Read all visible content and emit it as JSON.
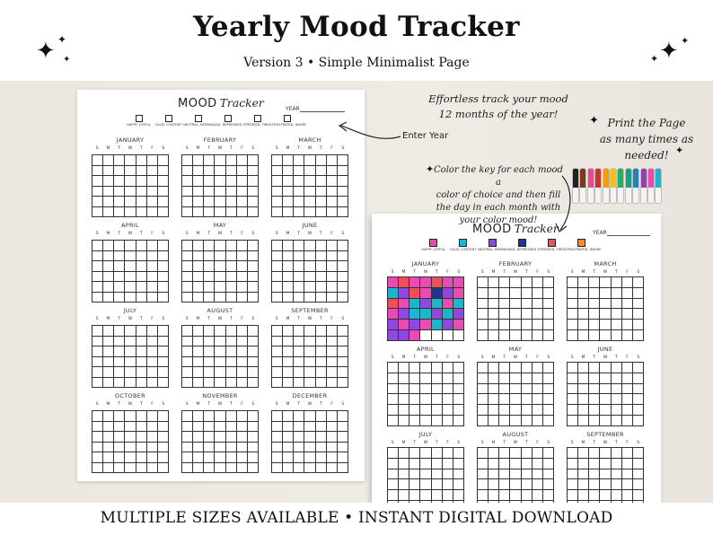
{
  "header": {
    "title": "Yearly Mood Tracker",
    "subtitle": "Version 3 • Simple Minimalist Page"
  },
  "footer": {
    "text": "MULTIPLE SIZES AVAILABLE • INSTANT DIGITAL DOWNLOAD"
  },
  "sheet": {
    "title_mood": "MOOD",
    "title_tracker": "Tracker",
    "year_label": "YEAR",
    "dow": [
      "S",
      "M",
      "T",
      "W",
      "T",
      "F",
      "S"
    ],
    "mood_keys": [
      {
        "label": "HAPPY, JOYFUL",
        "color": "#e84bb1"
      },
      {
        "label": "CALM, CONTENT",
        "color": "#1bb5cc"
      },
      {
        "label": "NEUTRAL, NORMAL",
        "color": "#9148e0"
      },
      {
        "label": "SAD, DEPRESSED",
        "color": "#23318f"
      },
      {
        "label": "STRESSED, TIRED",
        "color": "#ef4f58"
      },
      {
        "label": "FRUSTRATED, ANGRY",
        "color": "#f08a3c"
      }
    ],
    "months": [
      "JANUARY",
      "FEBRUARY",
      "MARCH",
      "APRIL",
      "MAY",
      "JUNE",
      "JULY",
      "AUGUST",
      "SEPTEMBER",
      "OCTOBER",
      "NOVEMBER",
      "DECEMBER"
    ]
  },
  "annotations": {
    "enter_year": "Enter Year",
    "effortless_line1": "Effortless track your mood",
    "effortless_line2": "12 months of the year!",
    "print_line1": "Print the Page",
    "print_line2": "as many times as",
    "print_line3": "needed!",
    "color_line1": "Color the key for each mood a",
    "color_line2": "color of choice and then fill",
    "color_line3": "the day in each month with",
    "color_line4": "your color mood!"
  },
  "markers": [
    "#222222",
    "#7a3b1e",
    "#e94b8f",
    "#c0392b",
    "#f39c12",
    "#f1c40f",
    "#27ae60",
    "#16a085",
    "#2980b9",
    "#8e44ad",
    "#e84bb1",
    "#1bb5cc"
  ],
  "january_fill": [
    [
      "#e84bb1",
      "#ef4f58",
      "#e84bb1",
      "#e84bb1",
      "#ef4f58",
      "#e84bb1",
      "#e84bb1"
    ],
    [
      "#1bb5cc",
      "#9148e0",
      "#ef4f58",
      "#e84bb1",
      "#23318f",
      "#9148e0",
      "#e84bb1"
    ],
    [
      "#ef4f58",
      "#e84bb1",
      "#1bb5cc",
      "#9148e0",
      "#1bb5cc",
      "#e84bb1",
      "#1bb5cc"
    ],
    [
      "#e84bb1",
      "#9148e0",
      "#1bb5cc",
      "#1bb5cc",
      "#9148e0",
      "#1bb5cc",
      "#9148e0"
    ],
    [
      "#9148e0",
      "#e84bb1",
      "#9148e0",
      "#e84bb1",
      "#1bb5cc",
      "#9148e0",
      "#e84bb1"
    ],
    [
      "#9148e0",
      "#9148e0",
      "#e84bb1",
      "",
      "",
      "",
      ""
    ]
  ]
}
